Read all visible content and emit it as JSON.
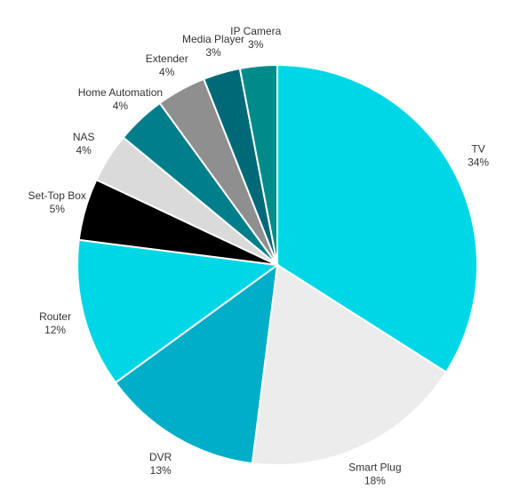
{
  "chart_data": {
    "type": "pie",
    "start_angle_deg": 0,
    "direction": "clockwise",
    "slices": [
      {
        "label": "TV",
        "value": 34,
        "display": "34%",
        "color": "#00D7E6"
      },
      {
        "label": "Smart Plug",
        "value": 18,
        "display": "18%",
        "color": "#ECECEC"
      },
      {
        "label": "DVR",
        "value": 13,
        "display": "13%",
        "color": "#00AEC8"
      },
      {
        "label": "Router",
        "value": 12,
        "display": "12%",
        "color": "#00D7E6"
      },
      {
        "label": "Set-Top Box",
        "value": 5,
        "display": "5%",
        "color": "#000000"
      },
      {
        "label": "NAS",
        "value": 4,
        "display": "4%",
        "color": "#DADADA"
      },
      {
        "label": "Home Automation",
        "value": 4,
        "display": "4%",
        "color": "#007F8A"
      },
      {
        "label": "Extender",
        "value": 4,
        "display": "4%",
        "color": "#8F8F8F"
      },
      {
        "label": "Media Player",
        "value": 3,
        "display": "3%",
        "color": "#006978"
      },
      {
        "label": "IP Camera",
        "value": 3,
        "display": "3%",
        "color": "#008B8B"
      }
    ]
  }
}
